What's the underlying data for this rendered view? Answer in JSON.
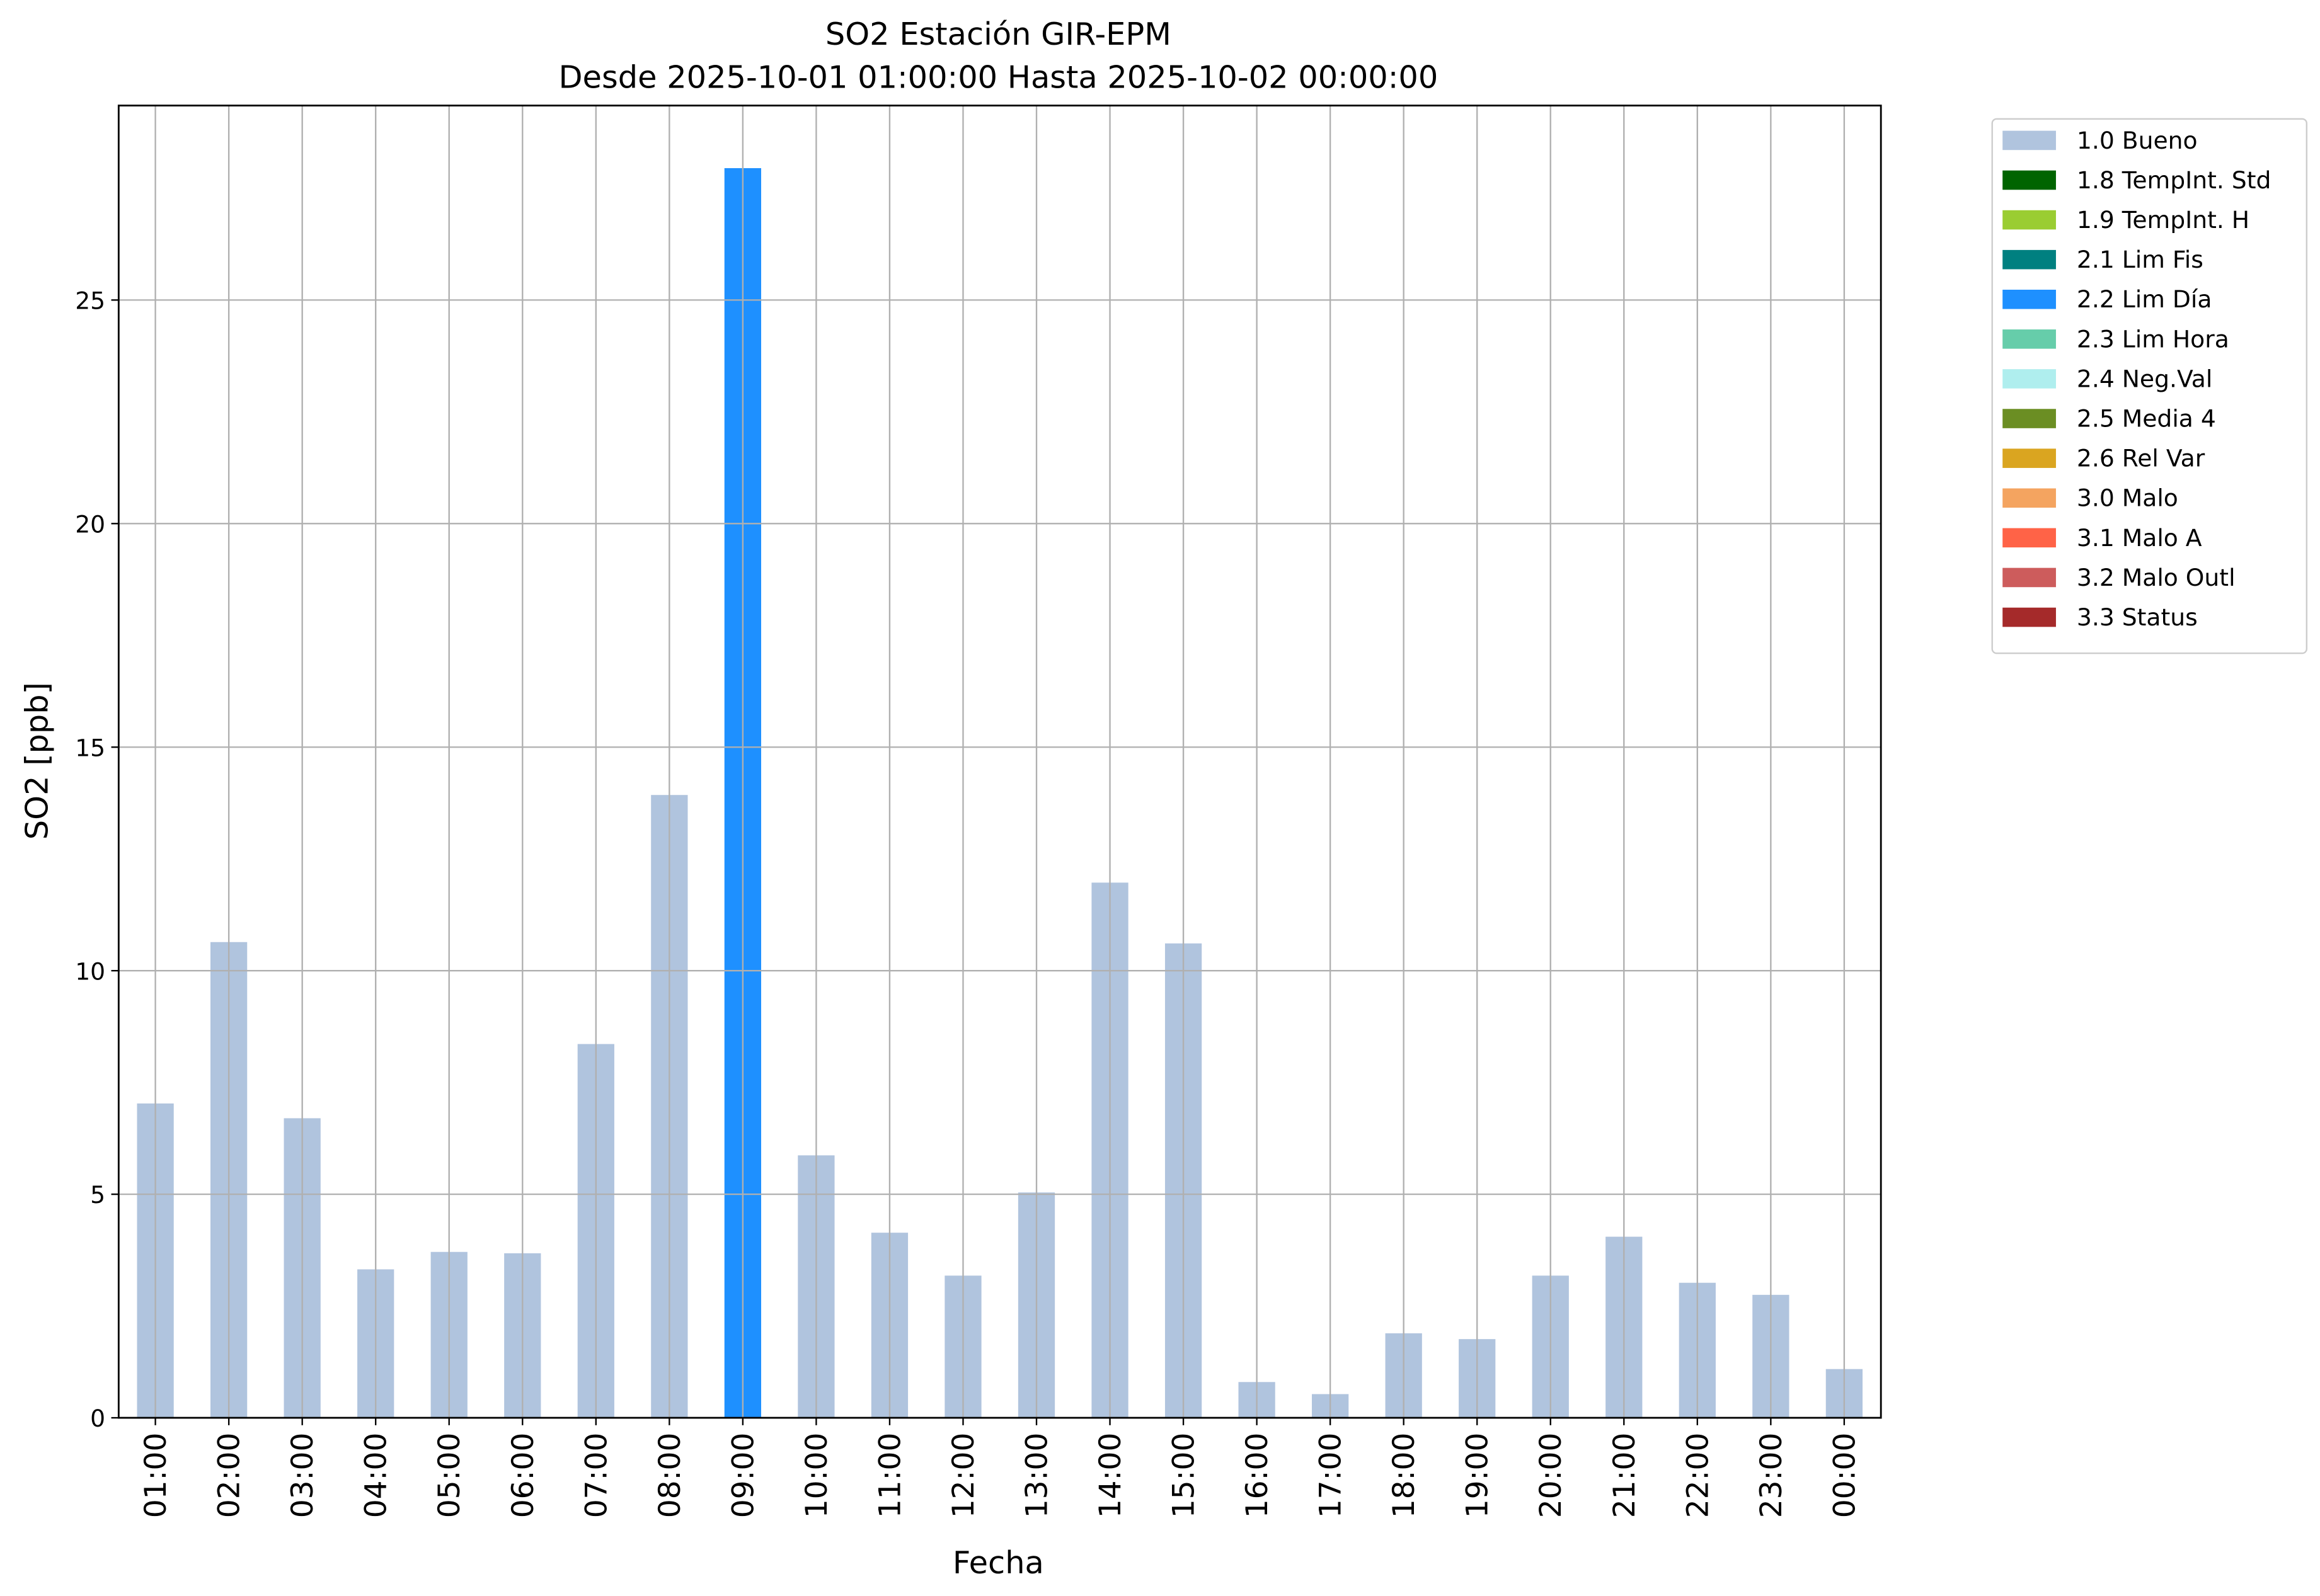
{
  "chart_data": {
    "type": "stacked-bar",
    "title": "SO2 Estación GIR-EPM",
    "subtitle": "Desde 2025-10-01 01:00:00 Hasta 2025-10-02 00:00:00",
    "x_label": "Fecha",
    "y_label": "SO2 [ppb]",
    "categories": [
      "01:00",
      "02:00",
      "03:00",
      "04:00",
      "05:00",
      "06:00",
      "07:00",
      "08:00",
      "09:00",
      "10:00",
      "11:00",
      "12:00",
      "13:00",
      "14:00",
      "15:00",
      "16:00",
      "17:00",
      "18:00",
      "19:00",
      "20:00",
      "21:00",
      "22:00",
      "23:00",
      "00:00"
    ],
    "ylim": [
      0,
      29.35
    ],
    "yticks": [
      0,
      5,
      10,
      15,
      20,
      25
    ],
    "grid": true,
    "legend": "outside-right",
    "series": [
      {
        "name": "1.0 Bueno",
        "color": "#b0c4de",
        "values": [
          7.03,
          10.64,
          6.7,
          3.32,
          3.71,
          3.68,
          8.36,
          13.93,
          null,
          5.87,
          4.14,
          3.18,
          5.04,
          11.97,
          10.61,
          0.8,
          0.53,
          1.89,
          1.76,
          3.18,
          4.05,
          3.02,
          2.75,
          1.09
        ]
      },
      {
        "name": "1.8 TempInt. Std",
        "color": "#006400",
        "values": [
          null,
          null,
          null,
          null,
          null,
          null,
          null,
          null,
          null,
          null,
          null,
          null,
          null,
          null,
          null,
          null,
          null,
          null,
          null,
          null,
          null,
          null,
          null,
          null
        ]
      },
      {
        "name": "1.9 TempInt. H",
        "color": "#9acd32",
        "values": [
          null,
          null,
          null,
          null,
          null,
          null,
          null,
          null,
          null,
          null,
          null,
          null,
          null,
          null,
          null,
          null,
          null,
          null,
          null,
          null,
          null,
          null,
          null,
          null
        ]
      },
      {
        "name": "2.1 Lim Fis",
        "color": "#008080",
        "values": [
          null,
          null,
          null,
          null,
          null,
          null,
          null,
          null,
          null,
          null,
          null,
          null,
          null,
          null,
          null,
          null,
          null,
          null,
          null,
          null,
          null,
          null,
          null,
          null
        ]
      },
      {
        "name": "2.2 Lim Día",
        "color": "#1e90ff",
        "values": [
          null,
          null,
          null,
          null,
          null,
          null,
          null,
          null,
          27.95,
          null,
          null,
          null,
          null,
          null,
          null,
          null,
          null,
          null,
          null,
          null,
          null,
          null,
          null,
          null
        ]
      },
      {
        "name": "2.3 Lim Hora",
        "color": "#66cdaa",
        "values": [
          null,
          null,
          null,
          null,
          null,
          null,
          null,
          null,
          null,
          null,
          null,
          null,
          null,
          null,
          null,
          null,
          null,
          null,
          null,
          null,
          null,
          null,
          null,
          null
        ]
      },
      {
        "name": "2.4 Neg.Val",
        "color": "#afeeee",
        "values": [
          null,
          null,
          null,
          null,
          null,
          null,
          null,
          null,
          null,
          null,
          null,
          null,
          null,
          null,
          null,
          null,
          null,
          null,
          null,
          null,
          null,
          null,
          null,
          null
        ]
      },
      {
        "name": "2.5 Media 4",
        "color": "#6b8e23",
        "values": [
          null,
          null,
          null,
          null,
          null,
          null,
          null,
          null,
          null,
          null,
          null,
          null,
          null,
          null,
          null,
          null,
          null,
          null,
          null,
          null,
          null,
          null,
          null,
          null
        ]
      },
      {
        "name": "2.6 Rel Var",
        "color": "#daa520",
        "values": [
          null,
          null,
          null,
          null,
          null,
          null,
          null,
          null,
          null,
          null,
          null,
          null,
          null,
          null,
          null,
          null,
          null,
          null,
          null,
          null,
          null,
          null,
          null,
          null
        ]
      },
      {
        "name": "3.0 Malo",
        "color": "#f4a460",
        "values": [
          null,
          null,
          null,
          null,
          null,
          null,
          null,
          null,
          null,
          null,
          null,
          null,
          null,
          null,
          null,
          null,
          null,
          null,
          null,
          null,
          null,
          null,
          null,
          null
        ]
      },
      {
        "name": "3.1 Malo A",
        "color": "#ff6347",
        "values": [
          null,
          null,
          null,
          null,
          null,
          null,
          null,
          null,
          null,
          null,
          null,
          null,
          null,
          null,
          null,
          null,
          null,
          null,
          null,
          null,
          null,
          null,
          null,
          null
        ]
      },
      {
        "name": "3.2 Malo Outl",
        "color": "#cd5c5c",
        "values": [
          null,
          null,
          null,
          null,
          null,
          null,
          null,
          null,
          null,
          null,
          null,
          null,
          null,
          null,
          null,
          null,
          null,
          null,
          null,
          null,
          null,
          null,
          null,
          null
        ]
      },
      {
        "name": "3.3 Status",
        "color": "#a52a2a",
        "values": [
          null,
          null,
          null,
          null,
          null,
          null,
          null,
          null,
          null,
          null,
          null,
          null,
          null,
          null,
          null,
          null,
          null,
          null,
          null,
          null,
          null,
          null,
          null,
          null
        ]
      }
    ]
  }
}
